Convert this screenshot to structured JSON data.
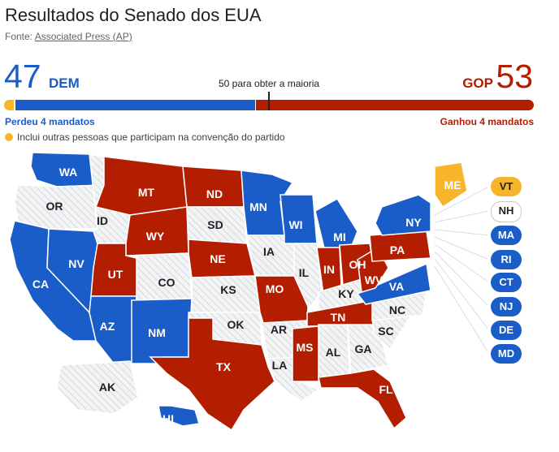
{
  "header": {
    "title": "Resultados do Senado dos EUA",
    "source_prefix": "Fonte:",
    "source_link": "Associated Press (AP)"
  },
  "tally": {
    "dem_seats": "47",
    "dem_label": "DEM",
    "gop_seats": "53",
    "gop_label": "GOP",
    "majority_text": "50 para obter a maioria",
    "dem_change": "Perdeu 4 mandatos",
    "gop_change": "Ganhou 4 mandatos",
    "independent_note": "Inclui outras pessoas que participam na convenção do partido"
  },
  "colors": {
    "dem": "#1a5dc8",
    "gop": "#b31d00",
    "independent": "#f6b52b",
    "no_race": "#f1f3f4"
  },
  "map": {
    "states": {
      "WA": "dem",
      "OR": "none",
      "CA": "dem",
      "NV": "dem",
      "ID": "none",
      "MT": "gop",
      "WY": "gop",
      "UT": "gop",
      "AZ": "dem",
      "CO": "none",
      "NM": "dem",
      "ND": "gop",
      "SD": "none",
      "NE": "gop",
      "KS": "none",
      "OK": "none",
      "TX": "gop",
      "MN": "dem",
      "IA": "none",
      "MO": "gop",
      "AR": "none",
      "LA": "none",
      "WI": "dem",
      "IL": "none",
      "MI": "dem",
      "IN": "gop",
      "OH": "gop",
      "KY": "none",
      "TN": "gop",
      "MS": "gop",
      "AL": "none",
      "GA": "none",
      "FL": "gop",
      "SC": "none",
      "NC": "none",
      "VA": "dem",
      "WV": "gop",
      "PA": "gop",
      "NY": "dem",
      "ME": "ind",
      "AK": "none",
      "HI": "dem"
    },
    "side_pills": [
      {
        "abbr": "VT",
        "party": "ind"
      },
      {
        "abbr": "NH",
        "party": "none"
      },
      {
        "abbr": "MA",
        "party": "dem"
      },
      {
        "abbr": "RI",
        "party": "dem"
      },
      {
        "abbr": "CT",
        "party": "dem"
      },
      {
        "abbr": "NJ",
        "party": "dem"
      },
      {
        "abbr": "DE",
        "party": "dem"
      },
      {
        "abbr": "MD",
        "party": "dem"
      }
    ]
  }
}
